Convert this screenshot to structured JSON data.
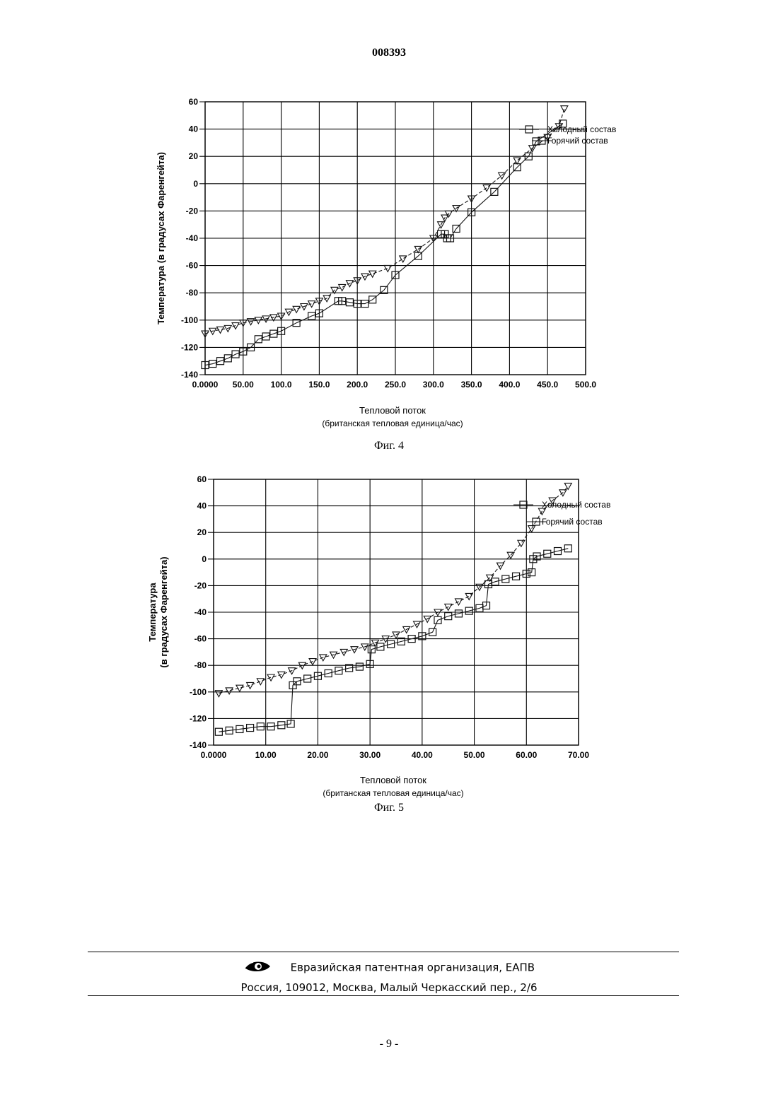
{
  "header": {
    "doc_number": "008393"
  },
  "figures": [
    {
      "caption": "Фиг. 4"
    },
    {
      "caption": "Фиг. 5"
    }
  ],
  "footer": {
    "org": "Евразийская патентная организация, ЕАПВ",
    "address": "Россия, 109012, Москва, Малый Черкасский пер., 2/6",
    "page": "- 9 -",
    "logo_icon": "eapo-eye-logo-icon"
  },
  "chart_data": [
    {
      "type": "line",
      "title": "",
      "xlabel": "Тепловой поток",
      "xlabel2": "(британская тепловая единица/час)",
      "ylabel": "Температура (в градусах Фаренгейта)",
      "ylabel_lines": [
        "Температура (в градусах Фаренгейта)"
      ],
      "xlim": [
        0,
        500
      ],
      "ylim": [
        -140,
        60
      ],
      "xticks": [
        0,
        50,
        100,
        150,
        200,
        250,
        300,
        350,
        400,
        450,
        500
      ],
      "xtick_labels": [
        "0.0000",
        "50.00",
        "100.0",
        "150.0",
        "200.0",
        "250.0",
        "300.0",
        "350.0",
        "400.0",
        "450.0",
        "500.0"
      ],
      "yticks": [
        -140,
        -120,
        -100,
        -80,
        -60,
        -40,
        -20,
        0,
        20,
        40,
        60
      ],
      "ytick_labels": [
        "-140",
        "-120",
        "-100",
        "-80",
        "-60",
        "-40",
        "-20",
        "0",
        "20",
        "40",
        "60"
      ],
      "grid": true,
      "legend_position": "top-right",
      "series": [
        {
          "name": "Холодный состав",
          "marker": "triangle-down",
          "x": [
            0,
            10,
            20,
            30,
            40,
            50,
            60,
            70,
            80,
            90,
            100,
            110,
            120,
            130,
            140,
            150,
            160,
            170,
            180,
            190,
            200,
            210,
            220,
            240,
            260,
            280,
            300,
            310,
            315,
            320,
            330,
            350,
            370,
            390,
            410,
            430,
            450,
            465,
            472
          ],
          "y": [
            -110,
            -108,
            -107,
            -106,
            -104,
            -102,
            -101,
            -100,
            -99,
            -98,
            -97,
            -94,
            -92,
            -90,
            -88,
            -86,
            -84,
            -78,
            -76,
            -73,
            -71,
            -68,
            -66,
            -62,
            -55,
            -48,
            -40,
            -30,
            -25,
            -22,
            -18,
            -11,
            -3,
            6,
            17,
            26,
            34,
            42,
            55
          ]
        },
        {
          "name": "Горячий состав",
          "marker": "square",
          "x": [
            0,
            10,
            20,
            30,
            40,
            50,
            60,
            70,
            80,
            90,
            100,
            120,
            140,
            150,
            175,
            180,
            190,
            200,
            210,
            220,
            235,
            250,
            280,
            310,
            315,
            318,
            322,
            330,
            350,
            380,
            410,
            425,
            435,
            470
          ],
          "y": [
            -133,
            -132,
            -130,
            -128,
            -125,
            -123,
            -120,
            -114,
            -112,
            -110,
            -108,
            -102,
            -97,
            -95,
            -86,
            -86,
            -87,
            -88,
            -88,
            -85,
            -78,
            -67,
            -53,
            -37,
            -37,
            -40,
            -40,
            -33,
            -21,
            -6,
            12,
            20,
            31,
            44
          ]
        }
      ]
    },
    {
      "type": "line",
      "title": "",
      "xlabel": "Тепловой поток",
      "xlabel2": "(британская тепловая единица/час)",
      "ylabel": "Температура (в градусах Фаренгейта)",
      "ylabel_lines": [
        "Температура",
        "(в градусах Фаренгейта)"
      ],
      "xlim": [
        0,
        70
      ],
      "ylim": [
        -140,
        60
      ],
      "xticks": [
        0,
        10,
        20,
        30,
        40,
        50,
        60,
        70
      ],
      "xtick_labels": [
        "0.0000",
        "10.00",
        "20.00",
        "30.00",
        "40.00",
        "50.00",
        "60.00",
        "70.00"
      ],
      "yticks": [
        -140,
        -120,
        -100,
        -80,
        -60,
        -40,
        -20,
        0,
        20,
        40,
        60
      ],
      "ytick_labels": [
        "-140",
        "-120",
        "-100",
        "-80",
        "-60",
        "-40",
        "-20",
        "0",
        "20",
        "40",
        "60"
      ],
      "grid": true,
      "legend_position": "top-right",
      "series": [
        {
          "name": "Холодный состав",
          "marker": "triangle-down",
          "x": [
            1,
            3,
            5,
            7,
            9,
            11,
            13,
            15,
            17,
            19,
            21,
            23,
            25,
            27,
            29,
            31,
            33,
            35,
            37,
            39,
            41,
            43,
            45,
            47,
            49,
            51,
            53,
            55,
            57,
            59,
            61,
            63,
            65,
            67,
            68
          ],
          "y": [
            -101,
            -99,
            -97,
            -95,
            -92,
            -89,
            -87,
            -84,
            -80,
            -77,
            -74,
            -72,
            -70,
            -68,
            -66,
            -63,
            -60,
            -57,
            -53,
            -49,
            -45,
            -40,
            -36,
            -32,
            -28,
            -21,
            -14,
            -5,
            3,
            12,
            23,
            36,
            44,
            50,
            55
          ]
        },
        {
          "name": "Горячий состав",
          "marker": "square",
          "x": [
            1,
            3,
            5,
            7,
            9,
            11,
            13,
            14.8,
            15.2,
            16,
            18,
            20,
            22,
            24,
            26,
            28,
            30,
            30.3,
            32,
            34,
            36,
            38,
            40,
            42,
            43,
            45,
            47,
            49,
            51,
            52.3,
            52.7,
            54,
            56,
            58,
            60,
            61,
            61.3,
            62,
            64,
            66,
            68
          ],
          "y": [
            -130,
            -129,
            -128,
            -127,
            -126,
            -126,
            -125,
            -124,
            -95,
            -92,
            -90,
            -88,
            -86,
            -84,
            -82,
            -81,
            -79,
            -68,
            -66,
            -64,
            -62,
            -60,
            -58,
            -55,
            -46,
            -43,
            -41,
            -39,
            -37,
            -35,
            -19,
            -17,
            -15,
            -13,
            -11,
            -10,
            0,
            2,
            4,
            6,
            8
          ]
        }
      ]
    }
  ]
}
